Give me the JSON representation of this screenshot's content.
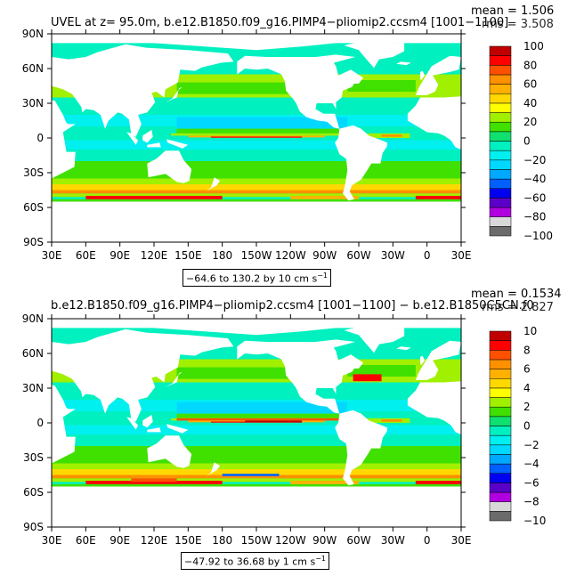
{
  "colors": {
    "levels": [
      "#6b6b6b",
      "#d8d8d8",
      "#b000e0",
      "#5b00c8",
      "#0000f0",
      "#0060ff",
      "#00a8ff",
      "#00d8ff",
      "#00f0f0",
      "#00f0c0",
      "#10e070",
      "#40e000",
      "#a0f000",
      "#ffff00",
      "#ffd800",
      "#ffb000",
      "#ff9000",
      "#ff5000",
      "#ff0000",
      "#c00000"
    ],
    "land": "#ffffff",
    "ocean_base": "#00f0c0"
  },
  "panels": [
    {
      "id": "top",
      "title": "UVEL at z=  95.0m, b.e12.B1850.f09_g16.PIMP4−pliomip2.ccsm4 [1001−1100]",
      "mean": "mean = 1.506",
      "rms": "rms = 3.508",
      "range_text": "−64.6 to 130.2 by 10 cm s",
      "range_unit_sup": "−1",
      "lat_labels": [
        "90N",
        "60N",
        "30N",
        "0",
        "30S",
        "60S",
        "90S"
      ],
      "lon_labels": [
        "30E",
        "60E",
        "90E",
        "120E",
        "150E",
        "180",
        "150W",
        "120W",
        "90W",
        "60W",
        "30W",
        "0",
        "30E"
      ],
      "colorbar_labels": [
        "100",
        "80",
        "60",
        "40",
        "20",
        "0",
        "−20",
        "−40",
        "−60",
        "−80",
        "−100"
      ]
    },
    {
      "id": "bottom",
      "title": "b.e12.B1850.f09_g16.PIMP4−pliomip2.ccsm4 [1001−1100] − b.e12.B1850C5CN.f0",
      "mean": "mean = 0.1534",
      "rms": "rms = 2.827",
      "range_text": "−47.92 to 36.68 by 1 cm s",
      "range_unit_sup": "−1",
      "lat_labels": [
        "90N",
        "60N",
        "30N",
        "0",
        "30S",
        "60S",
        "90S"
      ],
      "lon_labels": [
        "30E",
        "60E",
        "90E",
        "120E",
        "150E",
        "180",
        "150W",
        "120W",
        "90W",
        "60W",
        "30W",
        "0",
        "30E"
      ],
      "colorbar_labels": [
        "10",
        "8",
        "6",
        "4",
        "2",
        "0",
        "−2",
        "−4",
        "−6",
        "−8",
        "−10"
      ]
    }
  ]
}
